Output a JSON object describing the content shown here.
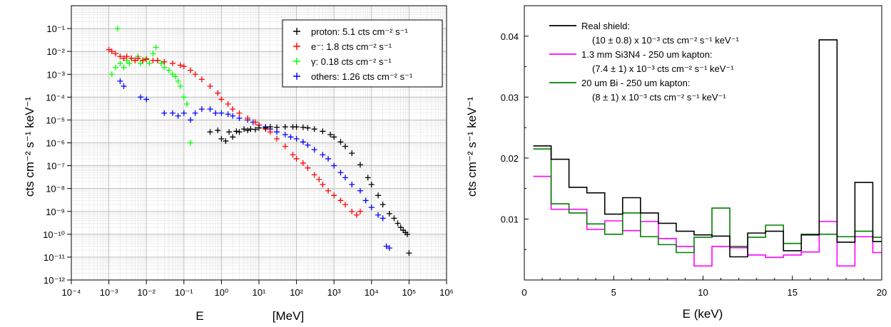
{
  "chart_data": [
    {
      "type": "scatter",
      "xscale": "log",
      "yscale": "log",
      "xlim": [
        0.0001,
        1000000
      ],
      "ylim": [
        1e-12,
        1
      ],
      "grid": true,
      "legend_position": "top-right",
      "xlabel": "E",
      "xunit": "[MeV]",
      "ylabel": "cts cm⁻² s⁻¹ keV⁻¹",
      "x_tick_exponents": [
        -4,
        -3,
        -2,
        -1,
        0,
        1,
        2,
        3,
        4,
        5,
        6
      ],
      "y_tick_exponents": [
        -12,
        -11,
        -10,
        -9,
        -8,
        -7,
        -6,
        -5,
        -4,
        -3,
        -2,
        -1
      ],
      "series": [
        {
          "name": "proton",
          "legend_label": "proton: 5.1 cts cm⁻² s⁻¹",
          "color": "#000000",
          "x": [
            0.5,
            0.8,
            1,
            1.3,
            1.6,
            2,
            2.5,
            3,
            4,
            5,
            6,
            8,
            10,
            15,
            20,
            30,
            50,
            80,
            100,
            150,
            200,
            300,
            500,
            800,
            1000,
            1500,
            2000,
            3000,
            5000,
            8000,
            10000,
            15000,
            20000,
            30000,
            40000,
            50000,
            60000,
            70000,
            80000,
            90000,
            100000
          ],
          "y": [
            3e-06,
            3.5e-06,
            1.5e-06,
            1.2e-06,
            3e-06,
            1.8e-06,
            3.2e-06,
            3e-06,
            4e-06,
            3.5e-06,
            4e-06,
            3.8e-06,
            4.5e-06,
            4.5e-06,
            5e-06,
            4.8e-06,
            5e-06,
            5e-06,
            5e-06,
            4.8e-06,
            4.5e-06,
            4e-06,
            3.2e-06,
            2.3e-06,
            1.8e-06,
            1.1e-06,
            7e-07,
            3.5e-07,
            1.1e-07,
            3e-08,
            1.5e-08,
            5e-09,
            2e-09,
            8e-10,
            5e-10,
            3e-10,
            2e-10,
            1.5e-10,
            1.2e-10,
            1e-10,
            1.5e-11
          ]
        },
        {
          "name": "e⁻",
          "legend_label": "e⁻: 1.8 cts cm⁻² s⁻¹",
          "color": "#ff0000",
          "x": [
            0.001,
            0.0012,
            0.0015,
            0.002,
            0.0025,
            0.003,
            0.004,
            0.005,
            0.006,
            0.008,
            0.01,
            0.015,
            0.02,
            0.03,
            0.05,
            0.08,
            0.1,
            0.15,
            0.2,
            0.3,
            0.5,
            0.8,
            1,
            1.5,
            2,
            3,
            5,
            8,
            10,
            15,
            20,
            30,
            50,
            80,
            100,
            150,
            200,
            300,
            400,
            500,
            700,
            1000,
            1500,
            2000,
            3000,
            4000,
            5000
          ],
          "y": [
            0.012,
            0.01,
            0.008,
            0.006,
            0.005,
            0.006,
            0.005,
            0.004,
            0.005,
            0.004,
            0.0045,
            0.004,
            0.004,
            0.0035,
            0.003,
            0.0025,
            0.0022,
            0.0015,
            0.001,
            0.0006,
            0.0003,
            0.00015,
            8e-05,
            5e-05,
            3e-05,
            2e-05,
            1.2e-05,
            8e-06,
            6e-06,
            4e-06,
            3e-06,
            1.5e-06,
            7e-07,
            3e-07,
            2e-07,
            1.3e-07,
            8e-08,
            4e-08,
            2.5e-08,
            1.5e-08,
            8e-09,
            5e-09,
            3e-09,
            2e-09,
            1e-09,
            7e-10,
            1e-09
          ]
        },
        {
          "name": "γ",
          "legend_label": "γ: 0.18 cts cm⁻² s⁻¹",
          "color": "#00ff00",
          "x": [
            0.0012,
            0.0015,
            0.0017,
            0.002,
            0.0025,
            0.003,
            0.0035,
            0.004,
            0.005,
            0.006,
            0.007,
            0.008,
            0.01,
            0.012,
            0.015,
            0.018,
            0.02,
            0.025,
            0.03,
            0.04,
            0.05,
            0.06,
            0.07,
            0.08,
            0.1,
            0.12,
            0.15
          ],
          "y": [
            0.001,
            0.002,
            0.1,
            0.003,
            0.002,
            0.004,
            0.003,
            0.005,
            0.004,
            0.006,
            0.003,
            0.004,
            0.005,
            0.003,
            0.008,
            0.015,
            0.004,
            0.003,
            0.002,
            0.0015,
            0.001,
            0.0008,
            0.0005,
            0.0003,
            0.0001,
            5e-05,
            1e-06
          ]
        },
        {
          "name": "others",
          "legend_label": "others: 1.26 cts cm⁻² s⁻¹",
          "color": "#0000ff",
          "x": [
            0.002,
            0.0025,
            0.007,
            0.01,
            0.03,
            0.05,
            0.07,
            0.1,
            0.15,
            0.2,
            0.3,
            0.5,
            0.7,
            1,
            1.5,
            2,
            3,
            5,
            7,
            10,
            15,
            20,
            30,
            50,
            70,
            100,
            150,
            200,
            300,
            500,
            700,
            1000,
            1500,
            2000,
            3000,
            5000,
            7000,
            10000,
            15000,
            20000,
            25000,
            30000
          ],
          "y": [
            0.0005,
            0.0003,
            0.0001,
            8e-05,
            2e-05,
            2e-05,
            1.5e-05,
            2e-05,
            1e-05,
            2e-05,
            3e-05,
            3e-05,
            2e-05,
            2e-05,
            1.8e-05,
            1.5e-05,
            1.2e-05,
            1e-05,
            8e-06,
            6e-06,
            5e-06,
            4e-06,
            3e-06,
            2.3e-06,
            1.8e-06,
            1.5e-06,
            1.1e-06,
            8e-07,
            5e-07,
            3e-07,
            2e-07,
            1e-07,
            5e-08,
            3e-08,
            1.5e-08,
            8e-09,
            3e-09,
            1.5e-09,
            7e-10,
            5e-10,
            3e-11,
            2.5e-11
          ]
        }
      ]
    },
    {
      "type": "line",
      "step": true,
      "xlim": [
        0,
        20
      ],
      "ylim": [
        0,
        0.045
      ],
      "grid": false,
      "legend_position": "top-left",
      "xlabel": "E (keV)",
      "ylabel": "cts cm⁻² s⁻¹ keV⁻¹",
      "x_ticks": [
        0,
        5,
        10,
        15,
        20
      ],
      "y_ticks": [
        0.01,
        0.02,
        0.03,
        0.04
      ],
      "x_tick_labels": [
        "0",
        "5",
        "10",
        "15",
        "20"
      ],
      "y_tick_labels": [
        "0.01",
        "0.02",
        "0.03",
        "0.04"
      ],
      "bin_edges": [
        0.5,
        1.5,
        2.5,
        3.5,
        4.5,
        5.5,
        6.5,
        7.5,
        8.5,
        9.5,
        10.5,
        11.5,
        12.5,
        13.5,
        14.5,
        15.5,
        16.5,
        17.5,
        18.5,
        19.5,
        20
      ],
      "series": [
        {
          "name": "Real shield",
          "legend_title": "Real shield:",
          "legend_value": "(10 ± 0.8) x 10⁻³ cts cm⁻² s⁻¹ keV⁻¹",
          "color": "#000000",
          "values": [
            0.022,
            0.0198,
            0.0152,
            0.0143,
            0.0108,
            0.0135,
            0.011,
            0.0093,
            0.008,
            0.0074,
            0.0072,
            0.0038,
            0.0077,
            0.008,
            0.0048,
            0.0074,
            0.0394,
            0.0062,
            0.016,
            0.0063
          ]
        },
        {
          "name": "1.3 mm Si3N4 - 250 um kapton",
          "legend_title": "1.3 mm Si3N4 - 250 um kapton:",
          "legend_value": "(7.4 ± 1) x 10⁻³ cts cm⁻² s⁻¹ keV⁻¹",
          "color": "#ff00ff",
          "values": [
            0.017,
            0.0116,
            0.0116,
            0.0083,
            0.0097,
            0.0081,
            0.0096,
            0.0068,
            0.0055,
            0.0023,
            0.0055,
            0.0053,
            0.0041,
            0.0037,
            0.0041,
            0.0046,
            0.0096,
            0.0023,
            0.0071,
            0.0045
          ]
        },
        {
          "name": "20 um Bi - 250 um kapton",
          "legend_title": "20 um Bi - 250 um kapton:",
          "legend_value": "(8 ± 1) x 10⁻³ cts cm⁻² s⁻¹ keV⁻¹",
          "color": "#008000",
          "values": [
            0.0215,
            0.0125,
            0.011,
            0.0092,
            0.0075,
            0.011,
            0.0071,
            0.0058,
            0.0045,
            0.007,
            0.0118,
            0.0055,
            0.007,
            0.009,
            0.006,
            0.0075,
            0.0075,
            0.0071,
            0.008,
            0.007
          ]
        }
      ]
    }
  ]
}
